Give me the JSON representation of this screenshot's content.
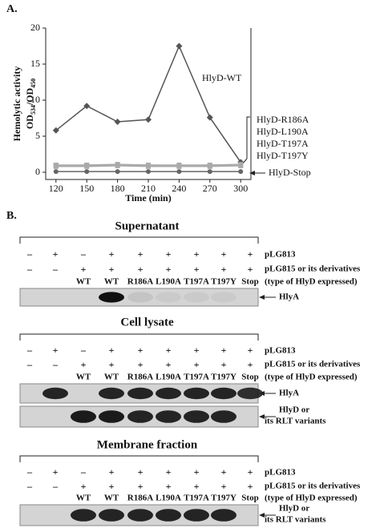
{
  "panel_a": {
    "label": "A.",
    "chart_data": {
      "type": "line",
      "y_label": "Hemolytic activity",
      "y_label_2": [
        "OD",
        "534",
        "/OD",
        "450"
      ],
      "x_label": "Time (min)",
      "x": [
        120,
        150,
        180,
        210,
        240,
        270,
        300
      ],
      "xlim": [
        110,
        310
      ],
      "xticks": [
        120,
        150,
        180,
        210,
        240,
        270,
        300
      ],
      "ylim": [
        -1,
        20
      ],
      "yticks": [
        0,
        5,
        10,
        15,
        20
      ],
      "series": [
        {
          "name": "HlyD-WT",
          "color": "#555555",
          "marker": "diamond",
          "values": [
            5.8,
            9.2,
            7.0,
            7.3,
            17.5,
            7.6,
            1.4
          ]
        },
        {
          "name": "HlyD-R186A",
          "color": "#aaaaaa",
          "marker": "square",
          "values": [
            1.0,
            1.0,
            1.1,
            1.0,
            1.0,
            1.0,
            1.1
          ]
        },
        {
          "name": "HlyD-L190A",
          "color": "#aaaaaa",
          "marker": "square",
          "values": [
            0.9,
            0.9,
            1.0,
            0.9,
            0.9,
            0.9,
            1.0
          ]
        },
        {
          "name": "HlyD-T197A",
          "color": "#aaaaaa",
          "marker": "square",
          "values": [
            0.8,
            0.8,
            0.9,
            0.8,
            0.8,
            0.8,
            0.9
          ]
        },
        {
          "name": "HlyD-T197Y",
          "color": "#aaaaaa",
          "marker": "square",
          "values": [
            0.9,
            1.0,
            1.0,
            1.0,
            0.9,
            1.0,
            1.0
          ]
        },
        {
          "name": "HlyD-Stop",
          "color": "#666666",
          "marker": "circle",
          "values": [
            0.1,
            0.1,
            0.1,
            0.1,
            0.1,
            0.1,
            0.1
          ]
        }
      ]
    }
  },
  "panel_b": {
    "label": "B.",
    "sections": [
      {
        "title": "Supernatant",
        "plg813": [
          "–",
          "+",
          "–",
          "+",
          "+",
          "+",
          "+",
          "+",
          "+"
        ],
        "plg815": [
          "–",
          "–",
          "+",
          "+",
          "+",
          "+",
          "+",
          "+",
          "+"
        ],
        "lanes": [
          null,
          null,
          "WT",
          "WT",
          "R186A",
          "L190A",
          "T197A",
          "T197Y",
          "Stop"
        ],
        "row_labels": [
          "pLG813",
          "pLG815 or its derivatives",
          "(type of HlyD expressed)"
        ],
        "blot_labels": [
          [
            "HlyA"
          ]
        ]
      },
      {
        "title": "Cell lysate",
        "plg813": [
          "–",
          "+",
          "–",
          "+",
          "+",
          "+",
          "+",
          "+",
          "+"
        ],
        "plg815": [
          "–",
          "–",
          "+",
          "+",
          "+",
          "+",
          "+",
          "+",
          "+"
        ],
        "lanes": [
          null,
          null,
          "WT",
          "WT",
          "R186A",
          "L190A",
          "T197A",
          "T197Y",
          "Stop"
        ],
        "row_labels": [
          "pLG813",
          "pLG815 or its derivatives",
          "(type of HlyD expressed)"
        ],
        "blot_labels": [
          [
            "HlyA"
          ],
          [
            "HlyD or",
            "its RLT variants"
          ]
        ]
      },
      {
        "title": "Membrane fraction",
        "plg813": [
          "–",
          "+",
          "–",
          "+",
          "+",
          "+",
          "+",
          "+",
          "+"
        ],
        "plg815": [
          "–",
          "–",
          "+",
          "+",
          "+",
          "+",
          "+",
          "+",
          "+"
        ],
        "lanes": [
          null,
          null,
          "WT",
          "WT",
          "R186A",
          "L190A",
          "T197A",
          "T197Y",
          "Stop"
        ],
        "row_labels": [
          "pLG813",
          "pLG815 or its derivatives",
          "(type of HlyD expressed)"
        ],
        "blot_labels": [
          [
            "HlyD or",
            "its RLT variants"
          ]
        ]
      }
    ]
  }
}
